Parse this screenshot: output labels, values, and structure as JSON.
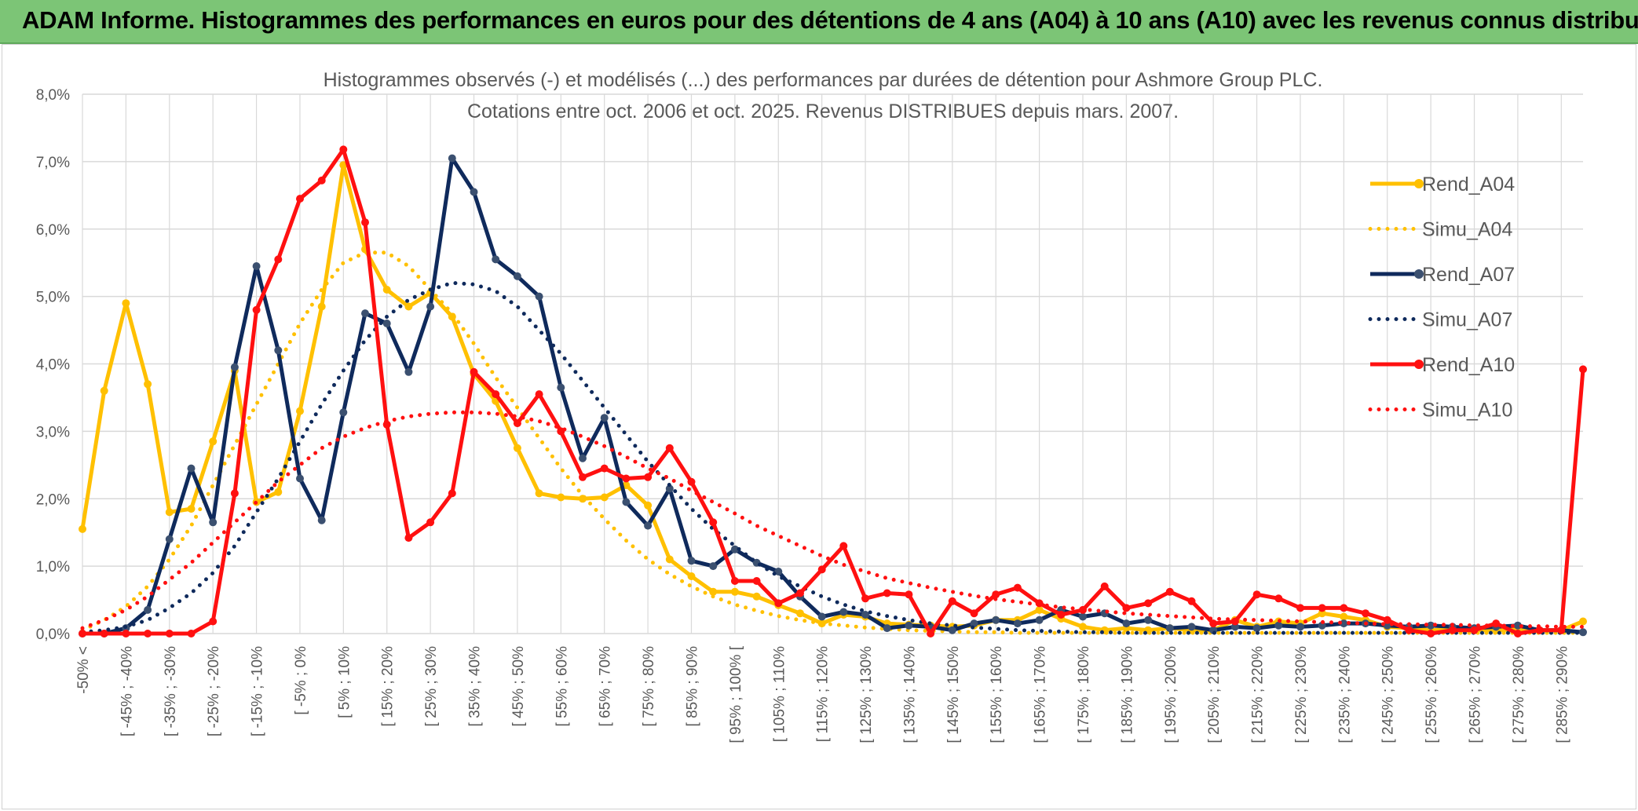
{
  "banner": {
    "title": "ADAM Informe. Histogrammes des performances en euros pour des détentions de 4 ans (A04) à 10 ans (A10) avec les revenus connus distribués"
  },
  "colors": {
    "banner_bg": "#7cc576",
    "A04": "#ffc000",
    "A07": "#0f2a5c",
    "A07_marker": "#3b5070",
    "A10": "#ff1010",
    "grid": "#d9d9d9",
    "text": "#595959"
  },
  "chart_data": {
    "type": "line",
    "title": [
      "Histogrammes observés (-) et modélisés (...) des performances par durées de détention pour Ashmore Group PLC.",
      "Cotations entre oct. 2006 et oct. 2025. Revenus DISTRIBUES depuis mars. 2007."
    ],
    "xlabel": "",
    "ylabel": "",
    "ylim": [
      0,
      8.0
    ],
    "y_ticks": [
      "0,0%",
      "1,0%",
      "2,0%",
      "3,0%",
      "4,0%",
      "5,0%",
      "6,0%",
      "7,0%",
      "8,0%"
    ],
    "x_tick_labels": [
      "-50% <",
      "[ -45% ; -40%",
      "[ -35% ; -30%",
      "[ -25% ; -20%",
      "[ -15% ; -10%",
      "[ -5% ; 0%",
      "[ 5% ; 10%",
      "[ 15% ; 20%",
      "[ 25% ; 30%",
      "[ 35% ; 40%",
      "[ 45% ; 50%",
      "[ 55% ; 60%",
      "[ 65% ; 70%",
      "[ 75% ; 80%",
      "[ 85% ; 90%",
      "[ 95% ; 100% [",
      "[ 105% ; 110%",
      "[ 115% ; 120%",
      "[ 125% ; 130%",
      "[ 135% ; 140%",
      "[ 145% ; 150%",
      "[ 155% ; 160%",
      "[ 165% ; 170%",
      "[ 175% ; 180%",
      "[ 185% ; 190%",
      "[ 195% ; 200%",
      "[ 205% ; 210%",
      "[ 215% ; 220%",
      "[ 225% ; 230%",
      "[ 235% ; 240%",
      "[ 245% ; 250%",
      "[ 255% ; 260%",
      "[ 265% ; 270%",
      "[ 275% ; 280%",
      "[ 285% ; 290%"
    ],
    "n_categories": 70,
    "legend_position": "right",
    "series": [
      {
        "name": "Rend_A04",
        "style": "solid",
        "color": "#ffc000",
        "values": [
          1.55,
          3.6,
          4.9,
          3.7,
          1.8,
          1.85,
          2.85,
          3.9,
          1.95,
          2.1,
          3.3,
          4.85,
          6.95,
          5.7,
          5.1,
          4.85,
          5.05,
          4.7,
          3.85,
          3.45,
          2.75,
          2.08,
          2.02,
          2.0,
          2.02,
          2.2,
          1.9,
          1.1,
          0.85,
          0.62,
          0.62,
          0.55,
          0.42,
          0.3,
          0.15,
          0.28,
          0.25,
          0.15,
          0.13,
          0.12,
          0.1,
          0.12,
          0.2,
          0.2,
          0.35,
          0.22,
          0.1,
          0.05,
          0.08,
          0.05,
          0.08,
          0.05,
          0.05,
          0.2,
          0.1,
          0.18,
          0.15,
          0.3,
          0.25,
          0.2,
          0.1,
          0.08,
          0.05,
          0.06,
          0.05,
          0.05,
          0.06,
          0.05,
          0.05,
          0.18
        ]
      },
      {
        "name": "Simu_A04",
        "style": "dotted",
        "color": "#ffc000",
        "values": [
          0.05,
          0.2,
          0.4,
          0.7,
          1.1,
          1.6,
          2.2,
          2.8,
          3.4,
          4.0,
          4.6,
          5.1,
          5.5,
          5.65,
          5.65,
          5.45,
          5.1,
          4.75,
          4.3,
          3.8,
          3.35,
          2.9,
          2.45,
          2.05,
          1.7,
          1.38,
          1.1,
          0.88,
          0.7,
          0.55,
          0.43,
          0.34,
          0.26,
          0.2,
          0.15,
          0.12,
          0.09,
          0.07,
          0.05,
          0.04,
          0.03,
          0.02,
          0.02,
          0.01,
          0.01,
          0.01,
          0.01,
          0.01,
          0.01,
          0.01,
          0.01,
          0.01,
          0.01,
          0.01,
          0.01,
          0.01,
          0.01,
          0.01,
          0.01,
          0.01,
          0.01,
          0.01,
          0.01,
          0.01,
          0.01,
          0.01,
          0.01,
          0.01,
          0.01,
          0.01
        ]
      },
      {
        "name": "Rend_A07",
        "style": "solid",
        "color": "#0f2a5c",
        "values": [
          0.0,
          0.0,
          0.08,
          0.35,
          1.4,
          2.45,
          1.65,
          3.95,
          5.45,
          4.2,
          2.3,
          1.68,
          3.28,
          4.75,
          4.6,
          3.88,
          4.85,
          7.05,
          6.55,
          5.55,
          5.3,
          5.0,
          3.65,
          2.6,
          3.2,
          1.95,
          1.6,
          2.15,
          1.08,
          1.0,
          1.25,
          1.05,
          0.92,
          0.55,
          0.25,
          0.32,
          0.28,
          0.08,
          0.12,
          0.1,
          0.05,
          0.15,
          0.2,
          0.15,
          0.2,
          0.35,
          0.25,
          0.3,
          0.15,
          0.2,
          0.08,
          0.1,
          0.05,
          0.1,
          0.08,
          0.12,
          0.1,
          0.12,
          0.15,
          0.15,
          0.12,
          0.1,
          0.12,
          0.1,
          0.08,
          0.1,
          0.12,
          0.05,
          0.05,
          0.02
        ]
      },
      {
        "name": "Simu_A07",
        "style": "dotted",
        "color": "#0f2a5c",
        "values": [
          0.02,
          0.05,
          0.1,
          0.2,
          0.38,
          0.6,
          0.9,
          1.3,
          1.8,
          2.3,
          2.85,
          3.4,
          3.9,
          4.35,
          4.7,
          4.95,
          5.1,
          5.2,
          5.18,
          5.08,
          4.85,
          4.5,
          4.15,
          3.75,
          3.35,
          2.95,
          2.55,
          2.2,
          1.85,
          1.55,
          1.3,
          1.05,
          0.85,
          0.7,
          0.55,
          0.43,
          0.33,
          0.26,
          0.2,
          0.15,
          0.12,
          0.09,
          0.07,
          0.05,
          0.04,
          0.03,
          0.02,
          0.02,
          0.01,
          0.01,
          0.01,
          0.01,
          0.01,
          0.01,
          0.01,
          0.01,
          0.01,
          0.01,
          0.01,
          0.01,
          0.01,
          0.01,
          0.01,
          0.01,
          0.01,
          0.01,
          0.01,
          0.01,
          0.01,
          0.01
        ]
      },
      {
        "name": "Rend_A10",
        "style": "solid",
        "color": "#ff1010",
        "values": [
          0.0,
          0.0,
          0.0,
          0.0,
          0.0,
          0.0,
          0.18,
          2.08,
          4.8,
          5.55,
          6.45,
          6.72,
          7.18,
          6.1,
          3.1,
          1.42,
          1.65,
          2.08,
          3.88,
          3.55,
          3.12,
          3.55,
          3.0,
          2.32,
          2.45,
          2.3,
          2.32,
          2.75,
          2.25,
          1.65,
          0.78,
          0.78,
          0.45,
          0.6,
          0.95,
          1.3,
          0.52,
          0.6,
          0.58,
          0.0,
          0.48,
          0.3,
          0.58,
          0.68,
          0.45,
          0.28,
          0.35,
          0.7,
          0.38,
          0.45,
          0.62,
          0.48,
          0.15,
          0.18,
          0.58,
          0.52,
          0.38,
          0.38,
          0.38,
          0.3,
          0.2,
          0.05,
          0.0,
          0.05,
          0.05,
          0.15,
          0.0,
          0.05,
          0.05,
          3.92
        ]
      },
      {
        "name": "Simu_A10",
        "style": "dotted",
        "color": "#ff1010",
        "values": [
          0.08,
          0.2,
          0.35,
          0.55,
          0.8,
          1.05,
          1.35,
          1.65,
          1.95,
          2.25,
          2.5,
          2.75,
          2.92,
          3.05,
          3.15,
          3.22,
          3.26,
          3.28,
          3.28,
          3.26,
          3.22,
          3.15,
          3.05,
          2.92,
          2.78,
          2.62,
          2.45,
          2.3,
          2.12,
          1.95,
          1.78,
          1.6,
          1.45,
          1.3,
          1.15,
          1.02,
          0.92,
          0.82,
          0.75,
          0.68,
          0.62,
          0.56,
          0.51,
          0.47,
          0.43,
          0.39,
          0.36,
          0.33,
          0.3,
          0.28,
          0.26,
          0.24,
          0.22,
          0.21,
          0.2,
          0.19,
          0.18,
          0.17,
          0.16,
          0.15,
          0.14,
          0.14,
          0.13,
          0.13,
          0.12,
          0.12,
          0.11,
          0.11,
          0.1,
          0.1
        ]
      }
    ]
  }
}
